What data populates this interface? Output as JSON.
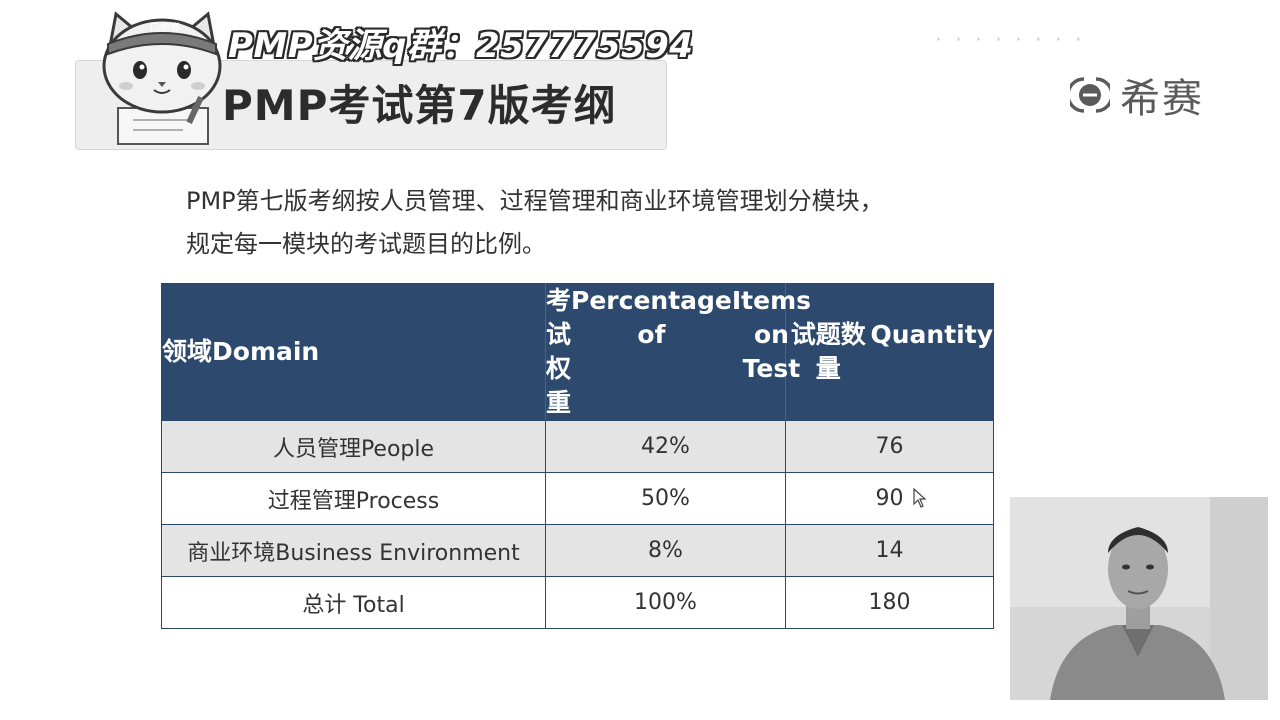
{
  "header": {
    "group_title": "PMP资源q群：257775594",
    "page_title": "PMP考试第7版考纲",
    "mascot_badge": "口希赛"
  },
  "brand": {
    "name": "希赛",
    "icon": "xisai-logo-icon"
  },
  "intro": {
    "line1": "PMP第七版考纲按人员管理、过程管理和商业环境管理划分模块，",
    "line2": "规定每一模块的考试题目的比例。"
  },
  "table": {
    "headers": [
      {
        "zh": "领域",
        "en": "Domain"
      },
      {
        "zh": "考试权重",
        "en1": "Percentage of",
        "en2": "Items on Test"
      },
      {
        "zh": "试题数量",
        "en": "Quantity"
      }
    ],
    "rows": [
      {
        "domain": "人员管理People",
        "percentage": "42%",
        "quantity": "76"
      },
      {
        "domain": "过程管理Process",
        "percentage": "50%",
        "quantity": "90"
      },
      {
        "domain": "商业环境Business Environment",
        "percentage": "8%",
        "quantity": "14"
      },
      {
        "domain": "总计 Total",
        "percentage": "100%",
        "quantity": "180"
      }
    ]
  },
  "colors": {
    "table_header": "#2d4a6e",
    "row_alt": "#e4e4e4",
    "border": "#2c4868"
  }
}
